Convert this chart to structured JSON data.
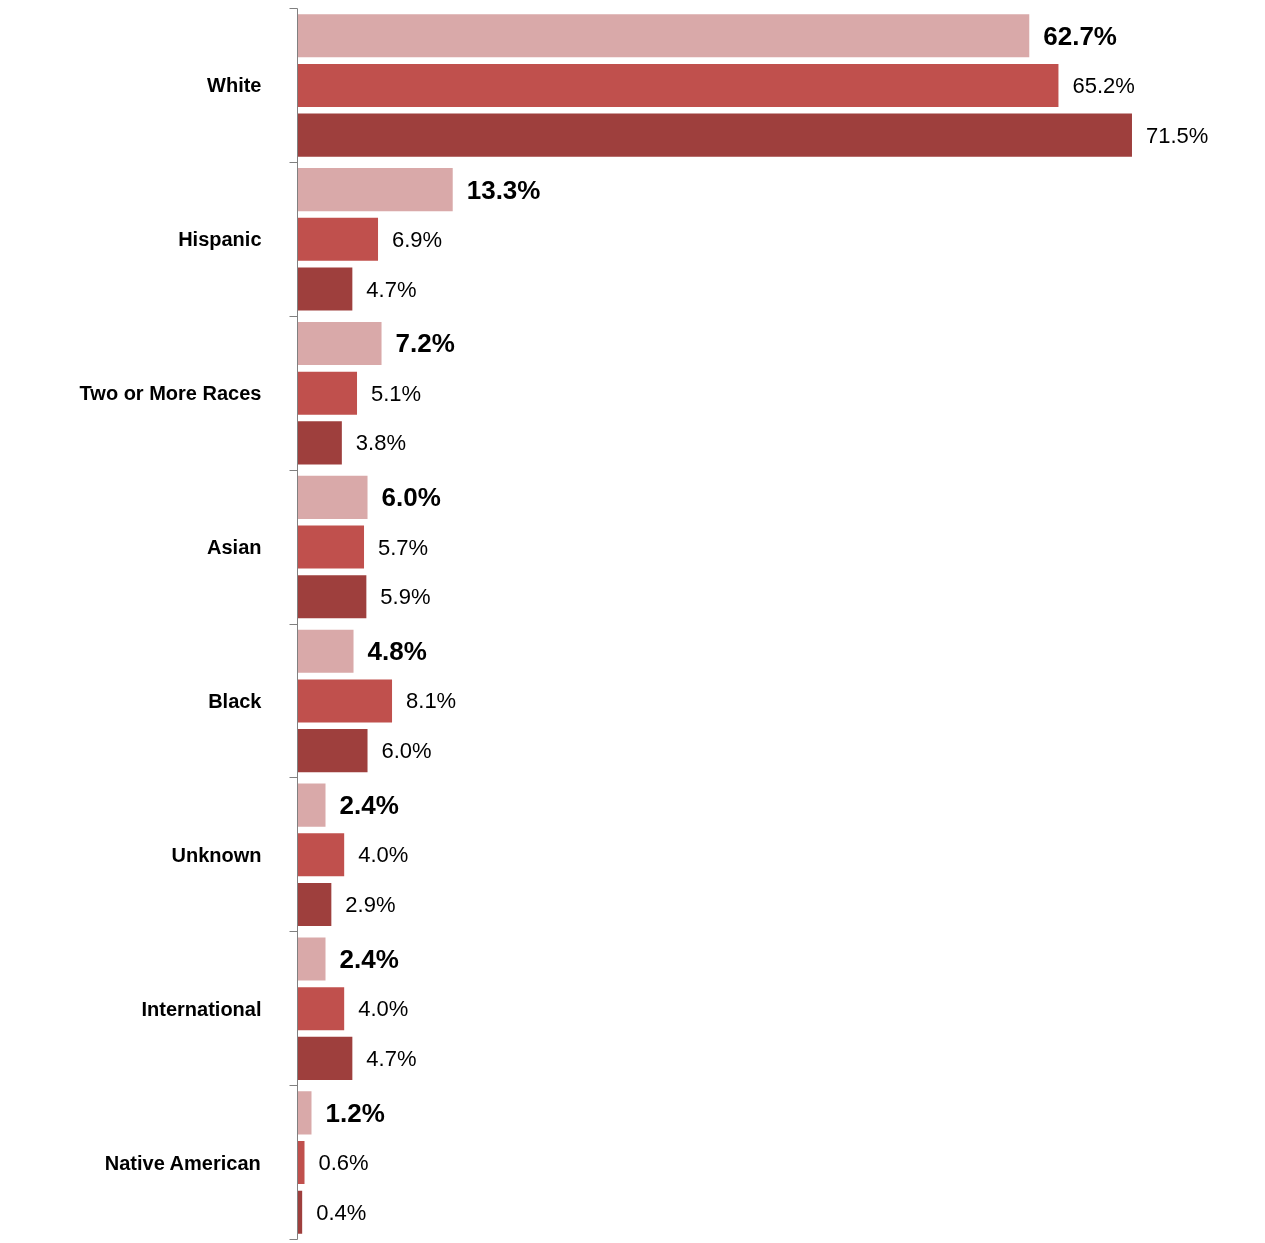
{
  "chart_data": {
    "type": "bar",
    "orientation": "horizontal",
    "categories": [
      "White",
      "Hispanic",
      "Two or More Races",
      "Asian",
      "Black",
      "Unknown",
      "International",
      "Native American"
    ],
    "series": [
      {
        "color": "#d9a9a9",
        "values": [
          62.7,
          13.3,
          7.2,
          6.0,
          4.8,
          2.4,
          2.4,
          1.2
        ],
        "value_labels": [
          "62.7%",
          "13.3%",
          "7.2%",
          "6.0%",
          "4.8%",
          "2.4%",
          "2.4%",
          "1.2%"
        ]
      },
      {
        "color": "#c0504d",
        "values": [
          65.2,
          6.9,
          5.1,
          5.7,
          8.1,
          4.0,
          4.0,
          0.6
        ],
        "value_labels": [
          "65.2%",
          "6.9%",
          "5.1%",
          "5.7%",
          "8.1%",
          "4.0%",
          "4.0%",
          "0.6%"
        ]
      },
      {
        "color": "#9e3f3d",
        "values": [
          71.5,
          4.7,
          3.8,
          5.9,
          6.0,
          2.9,
          4.7,
          0.4
        ],
        "value_labels": [
          "71.5%",
          "4.7%",
          "3.8%",
          "5.9%",
          "6.0%",
          "2.9%",
          "4.7%",
          "0.4%"
        ]
      }
    ],
    "grid": false,
    "tick_labels": "y"
  }
}
